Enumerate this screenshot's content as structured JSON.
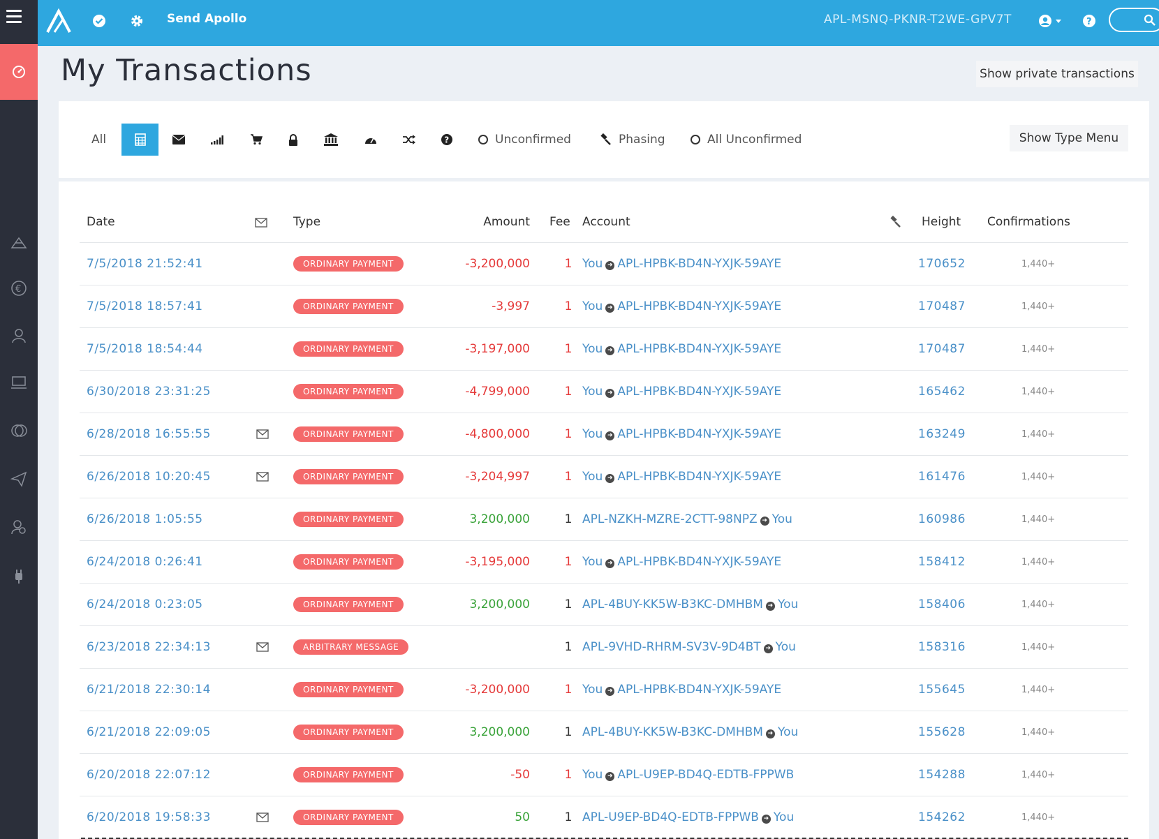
{
  "topbar": {
    "send_label": "Send Apollo",
    "account_id": "APL-MSNQ-PKNR-T2WE-GPV7T"
  },
  "page": {
    "title": "My Transactions",
    "private_button": "Show private transactions"
  },
  "filters": {
    "all_label": "All",
    "unconfirmed_label": "Unconfirmed",
    "phasing_label": "Phasing",
    "all_unconfirmed_label": "All Unconfirmed",
    "type_menu_button": "Show Type Menu"
  },
  "table": {
    "headers": {
      "date": "Date",
      "type": "Type",
      "amount": "Amount",
      "fee": "Fee",
      "account": "Account",
      "height": "Height",
      "confirmations": "Confirmations"
    },
    "rows": [
      {
        "date": "7/5/2018 21:52:41",
        "msg": false,
        "type": "ORDINARY PAYMENT",
        "amount": "-3,200,000",
        "dir": "out",
        "fee": "1",
        "from": "You",
        "to": "APL-HPBK-BD4N-YXJK-59AYE",
        "height": "170652",
        "conf": "1,440+"
      },
      {
        "date": "7/5/2018 18:57:41",
        "msg": false,
        "type": "ORDINARY PAYMENT",
        "amount": "-3,997",
        "dir": "out",
        "fee": "1",
        "from": "You",
        "to": "APL-HPBK-BD4N-YXJK-59AYE",
        "height": "170487",
        "conf": "1,440+"
      },
      {
        "date": "7/5/2018 18:54:44",
        "msg": false,
        "type": "ORDINARY PAYMENT",
        "amount": "-3,197,000",
        "dir": "out",
        "fee": "1",
        "from": "You",
        "to": "APL-HPBK-BD4N-YXJK-59AYE",
        "height": "170487",
        "conf": "1,440+"
      },
      {
        "date": "6/30/2018 23:31:25",
        "msg": false,
        "type": "ORDINARY PAYMENT",
        "amount": "-4,799,000",
        "dir": "out",
        "fee": "1",
        "from": "You",
        "to": "APL-HPBK-BD4N-YXJK-59AYE",
        "height": "165462",
        "conf": "1,440+"
      },
      {
        "date": "6/28/2018 16:55:55",
        "msg": true,
        "type": "ORDINARY PAYMENT",
        "amount": "-4,800,000",
        "dir": "out",
        "fee": "1",
        "from": "You",
        "to": "APL-HPBK-BD4N-YXJK-59AYE",
        "height": "163249",
        "conf": "1,440+"
      },
      {
        "date": "6/26/2018 10:20:45",
        "msg": true,
        "type": "ORDINARY PAYMENT",
        "amount": "-3,204,997",
        "dir": "out",
        "fee": "1",
        "from": "You",
        "to": "APL-HPBK-BD4N-YXJK-59AYE",
        "height": "161476",
        "conf": "1,440+"
      },
      {
        "date": "6/26/2018 1:05:55",
        "msg": false,
        "type": "ORDINARY PAYMENT",
        "amount": "3,200,000",
        "dir": "in",
        "fee": "1",
        "from": "APL-NZKH-MZRE-2CTT-98NPZ",
        "to": "You",
        "height": "160986",
        "conf": "1,440+"
      },
      {
        "date": "6/24/2018 0:26:41",
        "msg": false,
        "type": "ORDINARY PAYMENT",
        "amount": "-3,195,000",
        "dir": "out",
        "fee": "1",
        "from": "You",
        "to": "APL-HPBK-BD4N-YXJK-59AYE",
        "height": "158412",
        "conf": "1,440+"
      },
      {
        "date": "6/24/2018 0:23:05",
        "msg": false,
        "type": "ORDINARY PAYMENT",
        "amount": "3,200,000",
        "dir": "in",
        "fee": "1",
        "from": "APL-4BUY-KK5W-B3KC-DMHBM",
        "to": "You",
        "height": "158406",
        "conf": "1,440+"
      },
      {
        "date": "6/23/2018 22:34:13",
        "msg": true,
        "type": "ARBITRARY MESSAGE",
        "amount": "",
        "dir": "msg",
        "fee": "1",
        "from": "APL-9VHD-RHRM-SV3V-9D4BT",
        "to": "You",
        "height": "158316",
        "conf": "1,440+"
      },
      {
        "date": "6/21/2018 22:30:14",
        "msg": false,
        "type": "ORDINARY PAYMENT",
        "amount": "-3,200,000",
        "dir": "out",
        "fee": "1",
        "from": "You",
        "to": "APL-HPBK-BD4N-YXJK-59AYE",
        "height": "155645",
        "conf": "1,440+"
      },
      {
        "date": "6/21/2018 22:09:05",
        "msg": false,
        "type": "ORDINARY PAYMENT",
        "amount": "3,200,000",
        "dir": "in",
        "fee": "1",
        "from": "APL-4BUY-KK5W-B3KC-DMHBM",
        "to": "You",
        "height": "155628",
        "conf": "1,440+"
      },
      {
        "date": "6/20/2018 22:07:12",
        "msg": false,
        "type": "ORDINARY PAYMENT",
        "amount": "-50",
        "dir": "out",
        "fee": "1",
        "from": "You",
        "to": "APL-U9EP-BD4Q-EDTB-FPPWB",
        "height": "154288",
        "conf": "1,440+"
      },
      {
        "date": "6/20/2018 19:58:33",
        "msg": true,
        "type": "ORDINARY PAYMENT",
        "amount": "50",
        "dir": "in",
        "fee": "1",
        "from": "APL-U9EP-BD4Q-EDTB-FPPWB",
        "to": "You",
        "height": "154262",
        "conf": "1,440+"
      }
    ]
  },
  "colors": {
    "topbar": "#2ea7df",
    "sidebar": "#2b2f3a",
    "accent_red": "#f4696a",
    "negative": "#e53a3a",
    "positive": "#3aa33a",
    "link": "#4a90c8"
  },
  "icons": {
    "sidebar": [
      "dashboard-icon",
      "assets-icon",
      "currency-icon",
      "accounts-icon",
      "market-icon",
      "coins-icon",
      "messages-icon",
      "aliases-icon",
      "plugins-icon"
    ],
    "filters": [
      "calculator-icon",
      "envelope-icon",
      "signal-icon",
      "cart-icon",
      "lock-icon",
      "bank-icon",
      "gauge-icon",
      "shuffle-icon",
      "question-icon"
    ]
  }
}
